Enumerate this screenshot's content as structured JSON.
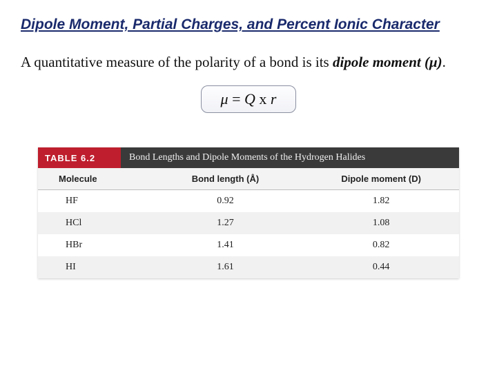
{
  "title": "Dipole Moment, Partial Charges, and Percent Ionic Character",
  "body_prefix": "A quantitative measure of the polarity of a bond is its ",
  "term": "dipole moment (μ)",
  "body_suffix": ".",
  "formula": {
    "mu": "μ",
    "eq": " = ",
    "Q": "Q",
    "times": " x ",
    "r": "r"
  },
  "table": {
    "badge": "TABLE 6.2",
    "caption": "Bond Lengths and Dipole Moments of the Hydrogen Halides",
    "columns": [
      {
        "key": "molecule",
        "label": "Molecule",
        "width_pct": 26,
        "align": "left"
      },
      {
        "key": "bond_length",
        "label": "Bond length (Å)",
        "width_pct": 37,
        "align": "center"
      },
      {
        "key": "dipole_moment",
        "label": "Dipole moment (D)",
        "width_pct": 37,
        "align": "center"
      }
    ],
    "rows": [
      {
        "molecule": "HF",
        "bond_length": "0.92",
        "dipole_moment": "1.82"
      },
      {
        "molecule": "HCl",
        "bond_length": "1.27",
        "dipole_moment": "1.08"
      },
      {
        "molecule": "HBr",
        "bond_length": "1.41",
        "dipole_moment": "0.82"
      },
      {
        "molecule": "HI",
        "bond_length": "1.61",
        "dipole_moment": "0.44"
      }
    ],
    "header_bg": "#f3f3f3",
    "row_even_bg": "#f1f1f1",
    "row_odd_bg": "#ffffff",
    "badge_bg": "#be1e2d",
    "caption_bg": "#3a3a3a"
  },
  "colors": {
    "title": "#1a2a6c",
    "text": "#111111",
    "background": "#ffffff"
  },
  "fonts": {
    "title_family": "Arial",
    "body_family": "Times New Roman"
  }
}
